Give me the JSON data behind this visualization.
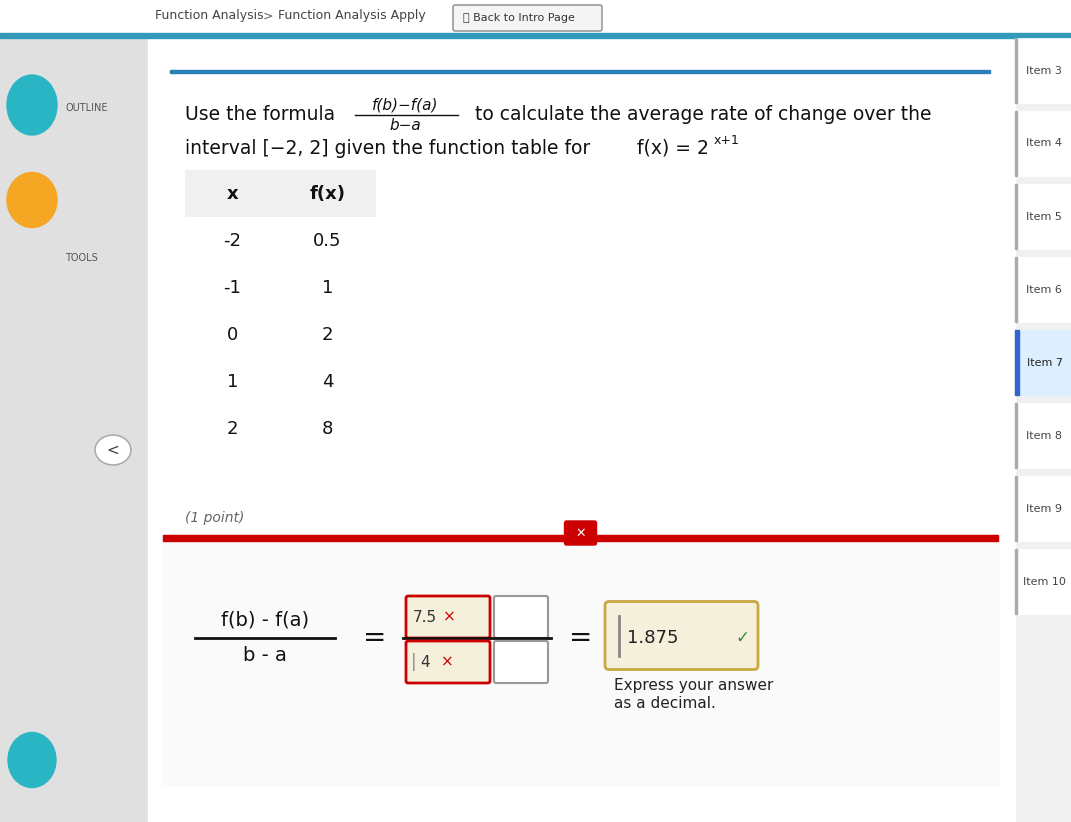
{
  "bg_color": "#e8e8e8",
  "main_bg": "#ffffff",
  "top_bar_color": "#3399bb",
  "nav_texts": [
    "Function Analysis",
    ">",
    "Function Analysis Apply"
  ],
  "back_btn_text": "Back to Intro Page",
  "left_sidebar_bg": "#e0e0e0",
  "outline_text": "OUTLINE",
  "tools_text": "TOOLS",
  "teal_color": "#2ab5c5",
  "orange_color": "#f5a623",
  "right_sidebar_bg": "#f5f5f5",
  "right_item_bg": "#ffffff",
  "right_items": [
    "Item 3",
    "Item 4",
    "Item 5",
    "Item 6",
    "Item 7",
    "Item 8",
    "Item 9",
    "Item 10"
  ],
  "item7_bg": "#ddeeff",
  "item7_border": "#3366cc",
  "item_border_color": "#cccccc",
  "content_bg": "#ffffff",
  "blue_line_color": "#2a7fb5",
  "formula_prefix": "Use the formula",
  "formula_frac_num": "f(b)−f(a)",
  "formula_frac_den": "b−a",
  "formula_suffix": "to calculate the average rate of change over the",
  "interval_line1": "interval [−2, 2] given the function table for ",
  "func_base": "f(x) = 2",
  "func_exp": "x+1",
  "table_headers": [
    "x",
    "f(x)"
  ],
  "table_data": [
    [
      "-2",
      "0.5"
    ],
    [
      "-1",
      "1"
    ],
    [
      "0",
      "2"
    ],
    [
      "1",
      "4"
    ],
    [
      "2",
      "8"
    ]
  ],
  "table_header_bg": "#f0f0f0",
  "table_border": "#bbbbbb",
  "point_text": "(1 point)",
  "answer_box_border": "#cc0000",
  "answer_box_bg": "#fafafa",
  "close_btn_color": "#cc0000",
  "lhs_num_text": "f(b) - f(a)",
  "lhs_den_text": "b - a",
  "input_bg": "#f5f0dc",
  "num_val": "7.5",
  "den_val": "4",
  "ans_val": "1.875",
  "wrong_color": "#cc0000",
  "correct_color": "#3a8a3a",
  "ans_box_bg": "#f5f0dc",
  "ans_box_border": "#c8a840",
  "express_text1": "Express your answer",
  "express_text2": "as a decimal."
}
